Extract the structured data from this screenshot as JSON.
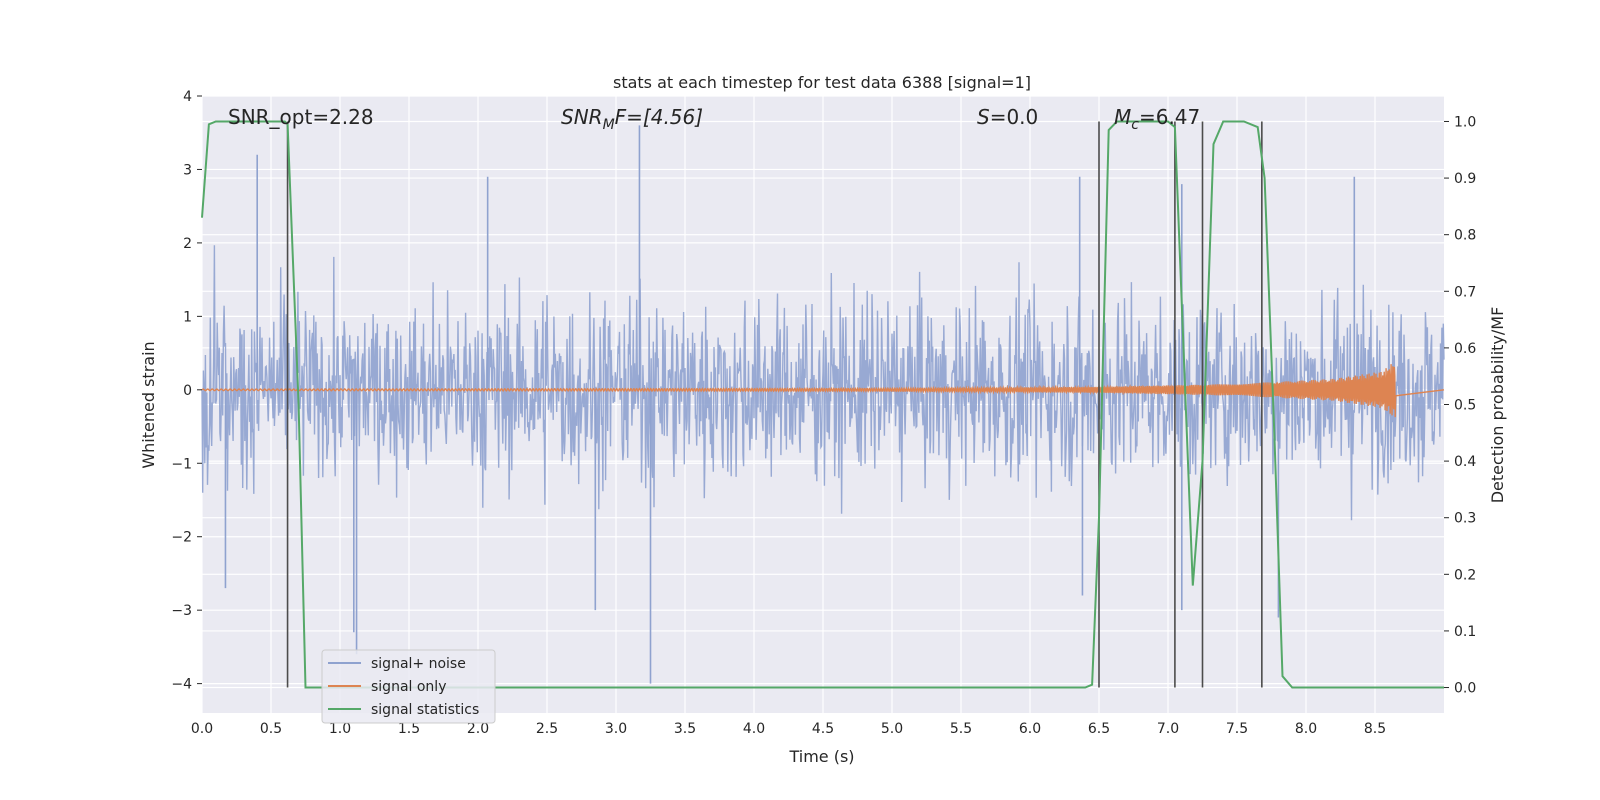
{
  "chart_data": {
    "type": "line",
    "title": "stats at each timestep for test data 6388 [signal=1]",
    "xlabel": "Time (s)",
    "ylabel_left": "Whitened strain",
    "ylabel_right": "Detection probability/MF",
    "xlim": [
      0.0,
      9.0
    ],
    "ylim_left": [
      -4.4,
      4.0
    ],
    "ylim_right": [
      -0.045,
      1.045
    ],
    "x_ticks": [
      "0.0",
      "0.5",
      "1.0",
      "1.5",
      "2.0",
      "2.5",
      "3.0",
      "3.5",
      "4.0",
      "4.5",
      "5.0",
      "5.5",
      "6.0",
      "6.5",
      "7.0",
      "7.5",
      "8.0",
      "8.5"
    ],
    "y_ticks_left": [
      "4",
      "3",
      "2",
      "1",
      "0",
      "−1",
      "−2",
      "−3",
      "−4"
    ],
    "y_ticks_right": [
      "1.0",
      "0.9",
      "0.8",
      "0.7",
      "0.6",
      "0.5",
      "0.4",
      "0.3",
      "0.2",
      "0.1",
      "0.0"
    ],
    "grid": true,
    "legend_position": "lower-left",
    "annotations": {
      "snr_opt": "SNR_opt=2.28",
      "snr_mf_prefix": "SNR",
      "snr_mf_sub": "M",
      "snr_mf_suffix": "F=[4.56]",
      "s_italic": "S",
      "s_value": "=0.0",
      "mc_italic": "M",
      "mc_sub": "c",
      "mc_value": "=6.47"
    },
    "series": [
      {
        "name": "signal+ noise",
        "color": "#8fa2cf",
        "description_values": "whitened noise, roughly ±2 with excursions",
        "envelope_typical": [
          -1.3,
          1.3
        ],
        "spikes": [
          {
            "x": 0.4,
            "y": 3.2
          },
          {
            "x": 0.17,
            "y": -2.7
          },
          {
            "x": 1.1,
            "y": -3.3
          },
          {
            "x": 1.12,
            "y": -3.6
          },
          {
            "x": 2.07,
            "y": 2.9
          },
          {
            "x": 2.85,
            "y": -3.0
          },
          {
            "x": 3.17,
            "y": 3.6
          },
          {
            "x": 3.25,
            "y": -4.0
          },
          {
            "x": 6.36,
            "y": 2.9
          },
          {
            "x": 6.38,
            "y": -2.8
          },
          {
            "x": 7.1,
            "y": 2.8
          },
          {
            "x": 7.1,
            "y": -3.0
          },
          {
            "x": 7.8,
            "y": -3.1
          },
          {
            "x": 8.35,
            "y": 2.9
          }
        ]
      },
      {
        "name": "signal only",
        "color": "#dd8452",
        "description_values": "chirp growing in amplitude, merger near 8.65 s",
        "amplitude_points": [
          [
            0.0,
            0.01
          ],
          [
            5.0,
            0.02
          ],
          [
            6.5,
            0.04
          ],
          [
            7.5,
            0.08
          ],
          [
            8.2,
            0.15
          ],
          [
            8.55,
            0.25
          ],
          [
            8.65,
            0.4
          ]
        ]
      },
      {
        "name": "signal statistics",
        "color": "#55a868",
        "x": [
          0.0,
          0.05,
          0.1,
          0.2,
          0.6,
          0.62,
          0.7,
          0.75,
          6.4,
          6.45,
          6.5,
          6.57,
          6.63,
          7.0,
          7.05,
          7.12,
          7.18,
          7.25,
          7.33,
          7.4,
          7.55,
          7.65,
          7.7,
          7.77,
          7.83,
          7.9,
          8.0,
          8.5,
          9.0
        ],
        "y": [
          0.83,
          0.995,
          1.0,
          1.0,
          1.0,
          0.995,
          0.5,
          0.0,
          0.0,
          0.005,
          0.3,
          0.985,
          1.0,
          1.0,
          0.99,
          0.55,
          0.18,
          0.4,
          0.96,
          1.0,
          1.0,
          0.99,
          0.9,
          0.45,
          0.02,
          0.0,
          0.0,
          0.0,
          0.0
        ]
      }
    ],
    "vertical_lines": [
      {
        "x": 0.62,
        "y_top": 1.0
      },
      {
        "x": 6.5,
        "y_top": 1.0
      },
      {
        "x": 7.05,
        "y_top": 1.0
      },
      {
        "x": 7.25,
        "y_top": 1.0
      },
      {
        "x": 7.68,
        "y_top": 1.0
      }
    ],
    "colors": {
      "axes_background": "#eaeaf2",
      "grid": "#ffffff",
      "vertical_line": "#4c4c4c"
    }
  }
}
